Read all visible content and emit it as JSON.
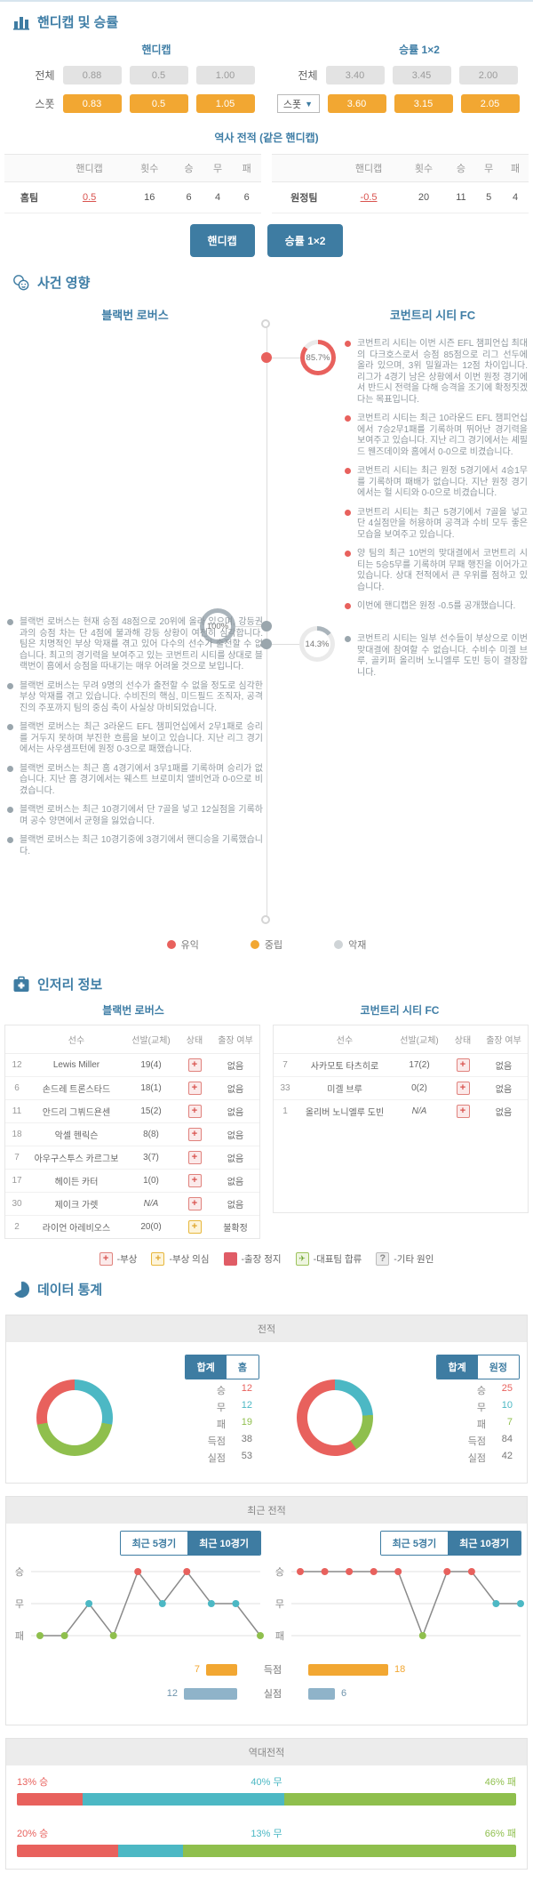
{
  "colors": {
    "accent": "#3e7ca2",
    "win": "#e8615d",
    "draw": "#4cb8c4",
    "loss": "#8fbf4d",
    "orange": "#f2a732",
    "ring_gray": "#aab4bb"
  },
  "odds": {
    "section_title": "핸디캡 및 승률",
    "handicap_title": "핸디캡",
    "winrate_title": "승률 1×2",
    "label_total": "전체",
    "label_spot": "스폿",
    "handicap_total": [
      "0.88",
      "0.5",
      "1.00"
    ],
    "handicap_spot": [
      "0.83",
      "0.5",
      "1.05"
    ],
    "winrate_total": [
      "3.40",
      "3.45",
      "2.00"
    ],
    "winrate_spot": [
      "3.60",
      "3.15",
      "2.05"
    ],
    "history_title": "역사 전적 (같은 핸디캡)",
    "history_headers": {
      "handicap": "핸디캡",
      "count": "횟수",
      "win": "승",
      "draw": "무",
      "loss": "패"
    },
    "history_home": {
      "team": "홈팀",
      "handicap": "0.5",
      "count": "16",
      "win": "6",
      "draw": "4",
      "loss": "6"
    },
    "history_away": {
      "team": "원정팀",
      "handicap": "-0.5",
      "count": "20",
      "win": "11",
      "draw": "5",
      "loss": "4"
    },
    "button_handicap": "핸디캡",
    "button_winrate": "승률 1×2"
  },
  "events": {
    "section_title": "사건 영향",
    "home_team": "블랙번 로버스",
    "away_team": "코번트리 시티 FC",
    "away_ring": {
      "percent": "85.7%",
      "value": 85.7,
      "tone": "red"
    },
    "home_ring": {
      "percent": "100%",
      "value": 100,
      "tone": "gray"
    },
    "away_ring2": {
      "percent": "14.3%",
      "value": 14.3,
      "tone": "gray"
    },
    "away_bullets": [
      "코번트리 시티는 이번 시즌 EFL 챔피언십 최대의 다크호스로서 승점 85점으로 리그 선두에 올라 있으며, 3위 밀월과는 12점 차이입니다. 리그가 4경기 남은 상황에서 이번 원정 경기에서 반드시 전력을 다해 승격을 조기에 확정짓겠다는 목표입니다.",
      "코번트리 시티는 최근 10라운드 EFL 챔피언십에서 7승2무1패를 기록하며 뛰어난 경기력을 보여주고 있습니다. 지난 리그 경기에서는 셰필드 웬즈데이와 홈에서 0-0으로 비겼습니다.",
      "코번트리 시티는 최근 원정 5경기에서 4승1무를 기록하며 패배가 없습니다. 지난 원정 경기에서는 헐 시티와 0-0으로 비겼습니다.",
      "코번트리 시티는 최근 5경기에서 7골을 넣고 단 4실점만을 허용하며 공격과 수비 모두 좋은 모습을 보여주고 있습니다.",
      "양 팀의 최근 10번의 맞대결에서 코번트리 시티는 5승5무를 기록하며 무패 행진을 이어가고 있습니다. 상대 전적에서 큰 우위를 점하고 있습니다.",
      "이번에 핸디캡은 원정 -0.5를 공개했습니다."
    ],
    "home_bullets": [
      "블랙번 로버스는 현재 승점 48점으로 20위에 올라 있으며, 강등권과의 승점 차는 단 4점에 불과해 강등 상황이 여전히 심각합니다. 팀은 치명적인 부상 악재를 겪고 있어 다수의 선수가 출전할 수 없습니다. 최고의 경기력을 보여주고 있는 코번트리 시티를 상대로 블랙번이 홈에서 승점을 따내기는 매우 어려울 것으로 보입니다.",
      "블랙번 로버스는 무려 9명의 선수가 출전할 수 없을 정도로 심각한 부상 악재를 겪고 있습니다. 수비진의 핵심, 미드필드 조직자, 공격진의 주포까지 팀의 중심 축이 사실상 마비되었습니다.",
      "블랙번 로버스는 최근 3라운드 EFL 챔피언십에서 2무1패로 승리를 거두지 못하며 부진한 흐름을 보이고 있습니다. 지난 리그 경기에서는 사우샘프턴에 원정 0-3으로 패했습니다.",
      "블랙번 로버스는 최근 홈 4경기에서 3무1패를 기록하며 승리가 없습니다. 지난 홈 경기에서는 웨스트 브로미치 앨비언과 0-0으로 비겼습니다.",
      "블랙번 로버스는 최근 10경기에서 단 7골을 넣고 12실점을 기록하며 공수 양면에서 균형을 잃었습니다.",
      "블랙번 로버스는 최근 10경기중에 3경기에서 핸디승을 기록했습니다."
    ],
    "away_bullets2": [
      "코번트리 시티는 일부 선수들이 부상으로 이번 맞대결에 참여할 수 없습니다. 수비수 미겔 브루, 골키퍼 올리버 노니엘루 도빈 등이 결장합니다."
    ],
    "legend": [
      {
        "label": "유익"
      },
      {
        "label": "중립"
      },
      {
        "label": "악재"
      }
    ]
  },
  "injury": {
    "section_title": "인저리 정보",
    "home_team": "블랙번 로버스",
    "away_team": "코번트리 시티 FC",
    "headers": {
      "player": "선수",
      "apps": "선발(교체)",
      "status": "상태",
      "play": "출장 여부"
    },
    "home_rows": [
      {
        "num": "12",
        "name": "Lewis Miller",
        "apps": "19(4)",
        "status": "injury",
        "play": "없음"
      },
      {
        "num": "6",
        "name": "손드레 트론스타드",
        "apps": "18(1)",
        "status": "injury",
        "play": "없음"
      },
      {
        "num": "11",
        "name": "안드리 그뷔드욘센",
        "apps": "15(2)",
        "status": "injury",
        "play": "없음"
      },
      {
        "num": "18",
        "name": "악셀 헨릭슨",
        "apps": "8(8)",
        "status": "injury",
        "play": "없음"
      },
      {
        "num": "7",
        "name": "아우구스투스 카르그보",
        "apps": "3(7)",
        "status": "injury",
        "play": "없음"
      },
      {
        "num": "17",
        "name": "헤이든 카터",
        "apps": "1(0)",
        "status": "injury",
        "play": "없음"
      },
      {
        "num": "30",
        "name": "제이크 가렛",
        "apps": "N/A",
        "status": "injury",
        "play": "없음"
      },
      {
        "num": "2",
        "name": "라이언 아레비오스",
        "apps": "20(0)",
        "status": "doubt",
        "play": "불확정"
      }
    ],
    "away_rows": [
      {
        "num": "7",
        "name": "사카모토 타츠히로",
        "apps": "17(2)",
        "status": "injury",
        "play": "없음"
      },
      {
        "num": "33",
        "name": "미겔 브루",
        "apps": "0(2)",
        "status": "injury",
        "play": "없음"
      },
      {
        "num": "1",
        "name": "올리버 노니엘루 도빈",
        "apps": "N/A",
        "status": "injury",
        "play": "없음"
      }
    ],
    "legend": [
      {
        "glyph": "+",
        "label": "-부상"
      },
      {
        "glyph": "+",
        "label": "-부상 의심"
      },
      {
        "glyph": "",
        "label": "-출장 정지"
      },
      {
        "glyph": "✈",
        "label": "-대표팀 합류"
      },
      {
        "glyph": "?",
        "label": "-기타 원인"
      }
    ]
  },
  "stats": {
    "section_title": "데이터 통계",
    "record": {
      "title": "전적",
      "home": {
        "toggle": [
          "합계",
          "홈"
        ],
        "donut": {
          "win": 12,
          "draw": 12,
          "loss": 19
        },
        "rows": [
          {
            "label": "승",
            "value": "12"
          },
          {
            "label": "무",
            "value": "12"
          },
          {
            "label": "패",
            "value": "19"
          },
          {
            "label": "득점",
            "value": "38"
          },
          {
            "label": "실점",
            "value": "53"
          }
        ]
      },
      "away": {
        "toggle": [
          "합계",
          "원정"
        ],
        "donut": {
          "win": 25,
          "draw": 10,
          "loss": 7
        },
        "rows": [
          {
            "label": "승",
            "value": "25"
          },
          {
            "label": "무",
            "value": "10"
          },
          {
            "label": "패",
            "value": "7"
          },
          {
            "label": "득점",
            "value": "84"
          },
          {
            "label": "실점",
            "value": "42"
          }
        ]
      }
    },
    "recent": {
      "title": "최근 전적",
      "toggle": [
        "최근 5경기",
        "최근 10경기"
      ],
      "y_labels": [
        "승",
        "무",
        "패"
      ],
      "home_results": [
        "loss",
        "loss",
        "draw",
        "loss",
        "win",
        "draw",
        "win",
        "draw",
        "draw",
        "loss"
      ],
      "away_results": [
        "win",
        "win",
        "win",
        "win",
        "win",
        "loss",
        "win",
        "win",
        "draw",
        "draw"
      ],
      "bars": {
        "goals_label": "득점",
        "conceded_label": "실점",
        "home_goals": 7,
        "home_conceded": 12,
        "away_goals": 18,
        "away_conceded": 6
      }
    },
    "h2h": {
      "title": "역대전적",
      "rows": [
        {
          "win": 13,
          "draw": 40,
          "loss": 46,
          "win_label": "13% 승",
          "draw_label": "40% 무",
          "loss_label": "46% 패"
        },
        {
          "win": 20,
          "draw": 13,
          "loss": 66,
          "win_label": "20% 승",
          "draw_label": "13% 무",
          "loss_label": "66% 패"
        }
      ]
    }
  }
}
